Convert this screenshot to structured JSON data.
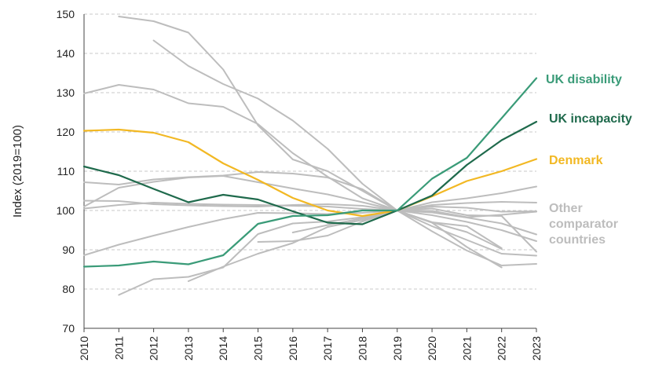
{
  "chart_data": {
    "type": "line",
    "title": "",
    "ylabel": "Index (2019=100)",
    "xlabel": "",
    "x": [
      "2010",
      "2011",
      "2012",
      "2013",
      "2014",
      "2015",
      "2016",
      "2017",
      "2018",
      "2019",
      "2020",
      "2021",
      "2022",
      "2023"
    ],
    "ylim": [
      70,
      150
    ],
    "yticks": [
      70,
      80,
      90,
      100,
      110,
      120,
      130,
      140,
      150
    ],
    "grid": "horizontal dashed",
    "series": [
      {
        "name": "UK disability",
        "color": "#3a9b78",
        "highlight": true,
        "values": [
          85.7,
          86.0,
          87.0,
          86.3,
          88.6,
          96.6,
          98.6,
          98.8,
          100.0,
          100.0,
          108.1,
          113.4,
          123.5,
          133.7
        ]
      },
      {
        "name": "UK incapacity",
        "color": "#1f6a4c",
        "highlight": true,
        "values": [
          111.2,
          109.0,
          105.5,
          102.1,
          104.0,
          102.8,
          99.8,
          96.9,
          96.5,
          100.0,
          103.8,
          111.6,
          117.9,
          122.6
        ]
      },
      {
        "name": "Denmark",
        "color": "#f2b823",
        "highlight": true,
        "values": [
          120.3,
          120.6,
          119.8,
          117.4,
          112.0,
          107.8,
          103.2,
          100.0,
          98.6,
          100.0,
          103.6,
          107.5,
          110.0,
          113.1
        ]
      },
      {
        "name": "Other comparator countries",
        "color": "#bdbdbd",
        "highlight": false,
        "values": [
          null,
          149.4,
          148.2,
          145.3,
          135.9,
          121.7,
          113.0,
          110.0,
          105.0,
          100.0,
          97.0,
          94.5,
          90.2,
          null
        ]
      },
      {
        "name": "",
        "color": "#bdbdbd",
        "values": [
          null,
          null,
          143.3,
          136.8,
          132.2,
          128.5,
          122.9,
          115.7,
          106.8,
          100.0,
          96.0,
          92.5,
          89.0,
          88.5
        ]
      },
      {
        "name": "",
        "color": "#bdbdbd",
        "values": [
          129.8,
          132.0,
          130.8,
          127.3,
          126.4,
          122.0,
          114.6,
          108.6,
          103.1,
          100.0,
          96.9,
          90.7,
          85.5,
          null
        ]
      },
      {
        "name": "",
        "color": "#bdbdbd",
        "values": [
          107.2,
          106.6,
          107.9,
          108.5,
          108.9,
          109.8,
          109.4,
          108.4,
          105.4,
          100.0,
          98.8,
          97.1,
          95.0,
          92.2
        ]
      },
      {
        "name": "",
        "color": "#bdbdbd",
        "values": [
          101.0,
          105.8,
          107.3,
          108.4,
          108.8,
          107.2,
          105.6,
          104.1,
          102.1,
          100.0,
          99.5,
          98.2,
          96.7,
          93.9
        ]
      },
      {
        "name": "",
        "color": "#bdbdbd",
        "values": [
          102.5,
          102.4,
          101.6,
          101.3,
          101.1,
          101.0,
          101.4,
          101.6,
          101.2,
          100.0,
          102.1,
          103.1,
          104.4,
          106.1
        ]
      },
      {
        "name": "",
        "color": "#bdbdbd",
        "values": [
          100.5,
          101.4,
          102.0,
          101.7,
          101.5,
          101.4,
          101.2,
          101.0,
          100.4,
          100.0,
          101.0,
          100.7,
          99.7,
          99.8
        ]
      },
      {
        "name": "",
        "color": "#bdbdbd",
        "values": [
          88.6,
          91.3,
          93.6,
          95.8,
          97.8,
          99.4,
          99.3,
          99.1,
          99.4,
          100.0,
          101.4,
          101.9,
          102.2,
          102.0
        ]
      },
      {
        "name": "",
        "color": "#bdbdbd",
        "values": [
          null,
          78.5,
          82.5,
          83.1,
          85.5,
          94.0,
          96.7,
          97.2,
          98.3,
          100.0,
          97.0,
          96.0,
          90.4,
          null
        ]
      },
      {
        "name": "",
        "color": "#bdbdbd",
        "values": [
          null,
          null,
          null,
          82.0,
          85.7,
          89.0,
          91.7,
          95.8,
          97.6,
          100.0,
          94.7,
          89.8,
          86.0,
          86.4
        ]
      },
      {
        "name": "",
        "color": "#bdbdbd",
        "values": [
          null,
          null,
          null,
          null,
          null,
          92.0,
          92.2,
          93.6,
          97.2,
          100.0,
          99.9,
          98.3,
          98.9,
          99.7
        ]
      },
      {
        "name": "",
        "color": "#bdbdbd",
        "values": [
          null,
          null,
          null,
          null,
          null,
          null,
          94.4,
          96.3,
          98.0,
          100.0,
          100.5,
          98.8,
          98.6,
          89.5
        ]
      }
    ],
    "labels": [
      {
        "text": "UK disability",
        "color": "#3a9b78"
      },
      {
        "text": "UK incapacity",
        "color": "#1f6a4c"
      },
      {
        "text": "Denmark",
        "color": "#f2b823"
      },
      {
        "text": "Other comparator countries",
        "color": "#bdbdbd",
        "lines": [
          "Other",
          "comparator",
          "countries"
        ]
      }
    ]
  }
}
